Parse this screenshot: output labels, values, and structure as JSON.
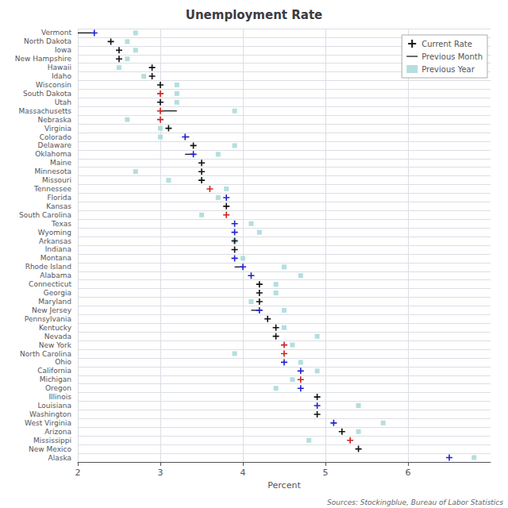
{
  "chart_data": {
    "type": "dot",
    "title": "Unemployment Rate",
    "xlabel": "Percent",
    "annotations": [
      "Sources: Stockingblue, Bureau of Labor Statistics"
    ],
    "orientation": "horizontal",
    "categories": [
      "Vermont",
      "North Dakota",
      "Iowa",
      "New Hampshire",
      "Hawaii",
      "Idaho",
      "Wisconsin",
      "South Dakota",
      "Utah",
      "Massachusetts",
      "Nebraska",
      "Virginia",
      "Colorado",
      "Delaware",
      "Oklahoma",
      "Maine",
      "Minnesota",
      "Missouri",
      "Tennessee",
      "Florida",
      "Kansas",
      "South Carolina",
      "Texas",
      "Wyoming",
      "Arkansas",
      "Indiana",
      "Montana",
      "Rhode Island",
      "Alabama",
      "Connecticut",
      "Georgia",
      "Maryland",
      "New Jersey",
      "Pennsylvania",
      "Kentucky",
      "Nevada",
      "New York",
      "North Carolina",
      "Ohio",
      "California",
      "Michigan",
      "Oregon",
      "Illinois",
      "Louisiana",
      "Washington",
      "West Virginia",
      "Arizona",
      "Mississippi",
      "New Mexico",
      "Alaska"
    ],
    "series": [
      {
        "name": "Current Rate",
        "type": "scatter",
        "marker": "plus",
        "color": "#111111",
        "colors": [
          "#2222cc",
          "#111111",
          "#111111",
          "#111111",
          "#111111",
          "#111111",
          "#111111",
          "#cc2222",
          "#111111",
          "#cc2222",
          "#cc2222",
          "#111111",
          "#2222cc",
          "#111111",
          "#2222cc",
          "#111111",
          "#111111",
          "#111111",
          "#cc2222",
          "#2222cc",
          "#111111",
          "#cc2222",
          "#2222cc",
          "#2222cc",
          "#111111",
          "#111111",
          "#2222cc",
          "#2222cc",
          "#2222cc",
          "#111111",
          "#111111",
          "#111111",
          "#2222cc",
          "#111111",
          "#111111",
          "#111111",
          "#cc2222",
          "#cc2222",
          "#2222cc",
          "#2222cc",
          "#cc2222",
          "#2222cc",
          "#111111",
          "#2222cc",
          "#111111",
          "#2222cc",
          "#111111",
          "#cc2222",
          "#111111",
          "#2222cc"
        ],
        "values": [
          2.2,
          2.4,
          2.5,
          2.5,
          2.9,
          2.9,
          3.0,
          3.0,
          3.0,
          3.0,
          3.0,
          3.1,
          3.3,
          3.4,
          3.4,
          3.5,
          3.5,
          3.5,
          3.6,
          3.8,
          3.8,
          3.8,
          3.9,
          3.9,
          3.9,
          3.9,
          3.9,
          4.0,
          4.1,
          4.2,
          4.2,
          4.2,
          4.2,
          4.3,
          4.4,
          4.4,
          4.5,
          4.5,
          4.5,
          4.7,
          4.7,
          4.7,
          4.9,
          4.9,
          4.9,
          5.1,
          5.2,
          5.3,
          5.4,
          6.5
        ]
      },
      {
        "name": "Previous Month",
        "type": "segment",
        "line_style": "solid",
        "color": "#000000",
        "values": [
          2.0,
          null,
          null,
          null,
          null,
          null,
          null,
          3.0,
          null,
          3.2,
          3.0,
          3.1,
          3.35,
          null,
          3.3,
          null,
          null,
          null,
          3.6,
          3.8,
          null,
          3.8,
          3.9,
          3.9,
          null,
          null,
          3.9,
          3.9,
          4.1,
          null,
          null,
          null,
          4.1,
          null,
          null,
          null,
          4.5,
          4.5,
          4.5,
          4.7,
          4.7,
          4.7,
          null,
          4.9,
          null,
          5.1,
          null,
          5.3,
          null,
          6.5
        ]
      },
      {
        "name": "Previous Year",
        "type": "scatter",
        "marker": "square",
        "color": "#a8d8d8",
        "values": [
          2.7,
          2.6,
          2.7,
          2.6,
          2.5,
          2.8,
          3.2,
          3.2,
          3.2,
          3.9,
          2.6,
          3.0,
          3.0,
          3.9,
          3.7,
          null,
          2.7,
          3.1,
          3.8,
          3.7,
          null,
          3.5,
          4.1,
          4.2,
          3.9,
          null,
          4.0,
          4.5,
          4.7,
          4.4,
          4.4,
          4.1,
          4.5,
          null,
          4.5,
          4.9,
          4.6,
          3.9,
          4.7,
          4.9,
          4.6,
          4.4,
          null,
          5.4,
          null,
          5.7,
          5.4,
          4.8,
          null,
          6.8
        ]
      }
    ],
    "xlim": [
      2.0,
      7.0
    ],
    "xticks": [
      2,
      3,
      4,
      5,
      6
    ],
    "grid": true,
    "legend": "upper right"
  }
}
